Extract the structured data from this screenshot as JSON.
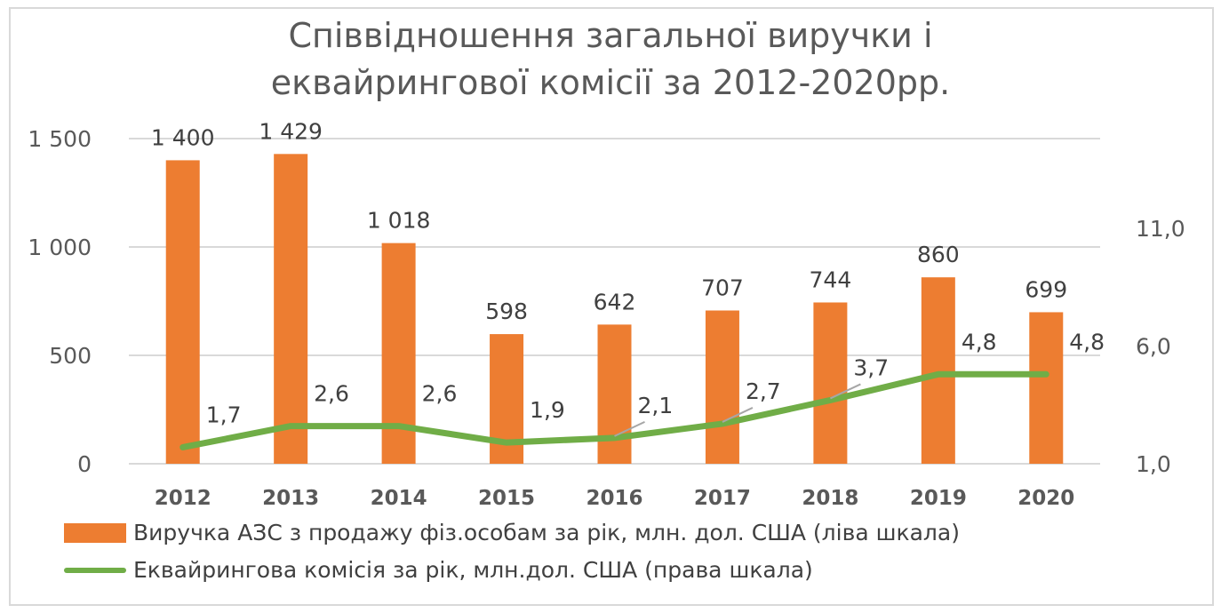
{
  "chart_data": {
    "type": "bar+line",
    "title": "Співвідношення загальної виручки і еквайрингової комісії за 2012-2020рр.",
    "title_lines": [
      "Співвідношення загальної виручки і",
      "еквайрингової комісії за 2012-2020рр."
    ],
    "categories": [
      "2012",
      "2013",
      "2014",
      "2015",
      "2016",
      "2017",
      "2018",
      "2019",
      "2020"
    ],
    "series": [
      {
        "name": "Виручка АЗС з продажу фіз.особам за рік, млн. дол. США (ліва шкала)",
        "type": "bar",
        "axis": "left",
        "color": "#ED7D31",
        "values": [
          1400,
          1429,
          1018,
          598,
          642,
          707,
          744,
          860,
          699
        ],
        "labels": [
          "1 400",
          "1 429",
          "1 018",
          "598",
          "642",
          "707",
          "744",
          "860",
          "699"
        ]
      },
      {
        "name": "Еквайрингова комісія за рік, млн.дол. США (права шкала)",
        "type": "line",
        "axis": "right",
        "color": "#70AD47",
        "values": [
          1.7,
          2.6,
          2.6,
          1.9,
          2.1,
          2.7,
          3.7,
          4.8,
          4.8
        ],
        "labels": [
          "1,7",
          "2,6",
          "2,6",
          "1,9",
          "2,1",
          "2,7",
          "3,7",
          "4,8",
          "4,8"
        ]
      }
    ],
    "y_left": {
      "range": [
        0,
        1500
      ],
      "ticks": [
        0,
        500,
        1000,
        1500
      ],
      "tick_labels": [
        "0",
        "500",
        "1 000",
        "1 500"
      ]
    },
    "y_right": {
      "range": [
        1,
        15
      ],
      "ticks": [
        1,
        6,
        11
      ],
      "tick_labels": [
        "1,0",
        "6,0",
        "11,0"
      ]
    },
    "grid": true,
    "legend_position": "bottom"
  }
}
